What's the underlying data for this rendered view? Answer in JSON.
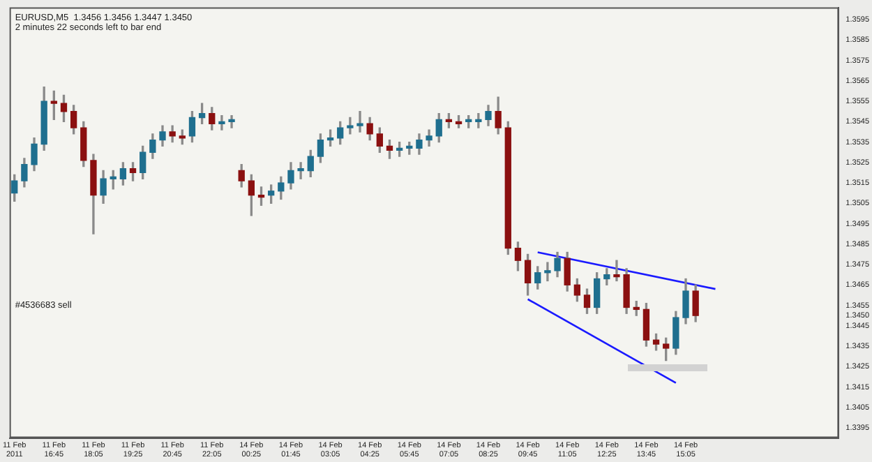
{
  "chart_data": {
    "type": "candlestick",
    "annotations": [
      "EURUSD,M5  1.3456 1.3456 1.3447 1.3450",
      "2 minutes 22 seconds left to bar end",
      "#4536683 sell"
    ],
    "categories": [
      "11 Feb 2011",
      null,
      null,
      null,
      "11 Feb 16:45",
      null,
      null,
      null,
      "11 Feb 18:05",
      null,
      null,
      null,
      "11 Feb 19:25",
      null,
      null,
      null,
      "11 Feb 20:45",
      null,
      null,
      null,
      "11 Feb 22:05",
      null,
      null,
      null,
      "14 Feb 00:25",
      null,
      null,
      null,
      "14 Feb 01:45",
      null,
      null,
      null,
      "14 Feb 03:05",
      null,
      null,
      null,
      "14 Feb 04:25",
      null,
      null,
      null,
      "14 Feb 05:45",
      null,
      null,
      null,
      "14 Feb 07:05",
      null,
      null,
      null,
      "14 Feb 08:25",
      null,
      null,
      null,
      "14 Feb 09:45",
      null,
      null,
      null,
      "14 Feb 11:05",
      null,
      null,
      null,
      "14 Feb 12:25",
      null,
      null,
      null,
      "14 Feb 13:45",
      null,
      null,
      null,
      "14 Feb 15:05",
      null,
      null,
      null,
      null,
      null,
      null,
      null,
      null,
      null,
      null,
      null,
      null,
      null,
      null,
      null
    ],
    "ohlc": [
      [
        1.351,
        1.3519,
        1.3506,
        1.3516
      ],
      [
        1.3516,
        1.3527,
        1.3513,
        1.3524
      ],
      [
        1.3524,
        1.3537,
        1.3521,
        1.3534
      ],
      [
        1.3534,
        1.3562,
        1.3531,
        1.3555
      ],
      [
        1.3555,
        1.356,
        1.3546,
        1.3554
      ],
      [
        1.3554,
        1.3558,
        1.3545,
        1.355
      ],
      [
        1.355,
        1.3553,
        1.3539,
        1.3542
      ],
      [
        1.3542,
        1.3545,
        1.3523,
        1.3526
      ],
      [
        1.3526,
        1.3529,
        1.349,
        1.3509
      ],
      [
        1.3509,
        1.3521,
        1.3505,
        1.3517
      ],
      [
        1.3517,
        1.3521,
        1.3512,
        1.3518
      ],
      [
        1.3517,
        1.3525,
        1.3514,
        1.3522
      ],
      [
        1.3522,
        1.3525,
        1.3516,
        1.352
      ],
      [
        1.352,
        1.3533,
        1.3517,
        1.353
      ],
      [
        1.353,
        1.3539,
        1.3527,
        1.3536
      ],
      [
        1.3536,
        1.3543,
        1.3533,
        1.354
      ],
      [
        1.354,
        1.3543,
        1.3535,
        1.3538
      ],
      [
        1.3538,
        1.3541,
        1.3534,
        1.3537
      ],
      [
        1.3538,
        1.355,
        1.3535,
        1.3547
      ],
      [
        1.3547,
        1.3554,
        1.3544,
        1.3549
      ],
      [
        1.3549,
        1.3552,
        1.3541,
        1.3544
      ],
      [
        1.3544,
        1.3548,
        1.3541,
        1.3545
      ],
      [
        1.3545,
        1.3548,
        1.3542,
        1.3546
      ],
      [
        1.3521,
        1.3524,
        1.3513,
        1.3516
      ],
      [
        1.3516,
        1.3519,
        1.3499,
        1.3509
      ],
      [
        1.3509,
        1.3513,
        1.3504,
        1.3508
      ],
      [
        1.3509,
        1.3514,
        1.3505,
        1.3511
      ],
      [
        1.3511,
        1.3518,
        1.3507,
        1.3515
      ],
      [
        1.3515,
        1.3525,
        1.3512,
        1.3521
      ],
      [
        1.3521,
        1.3525,
        1.3517,
        1.3522
      ],
      [
        1.3521,
        1.3531,
        1.3518,
        1.3528
      ],
      [
        1.3528,
        1.3539,
        1.3525,
        1.3536
      ],
      [
        1.3536,
        1.3541,
        1.3533,
        1.3537
      ],
      [
        1.3537,
        1.3545,
        1.3534,
        1.3542
      ],
      [
        1.3542,
        1.3547,
        1.3539,
        1.3543
      ],
      [
        1.3543,
        1.355,
        1.354,
        1.3544
      ],
      [
        1.3544,
        1.3547,
        1.3536,
        1.3539
      ],
      [
        1.3539,
        1.3542,
        1.353,
        1.3533
      ],
      [
        1.3533,
        1.3536,
        1.3527,
        1.3531
      ],
      [
        1.3531,
        1.3535,
        1.3528,
        1.3532
      ],
      [
        1.3532,
        1.3535,
        1.3529,
        1.3533
      ],
      [
        1.3532,
        1.3539,
        1.3529,
        1.3536
      ],
      [
        1.3536,
        1.3541,
        1.3533,
        1.3538
      ],
      [
        1.3538,
        1.3549,
        1.3535,
        1.3546
      ],
      [
        1.3546,
        1.3549,
        1.3542,
        1.3545
      ],
      [
        1.3545,
        1.3548,
        1.3542,
        1.3544
      ],
      [
        1.3545,
        1.3548,
        1.3542,
        1.3546
      ],
      [
        1.3545,
        1.3549,
        1.3542,
        1.3546
      ],
      [
        1.3546,
        1.3553,
        1.3543,
        1.355
      ],
      [
        1.355,
        1.3557,
        1.3539,
        1.3542
      ],
      [
        1.3542,
        1.3545,
        1.348,
        1.3483
      ],
      [
        1.3483,
        1.3486,
        1.3472,
        1.3477
      ],
      [
        1.3477,
        1.348,
        1.346,
        1.3466
      ],
      [
        1.3466,
        1.3474,
        1.3463,
        1.3471
      ],
      [
        1.3471,
        1.3476,
        1.3467,
        1.3472
      ],
      [
        1.3472,
        1.3481,
        1.3469,
        1.3478
      ],
      [
        1.3478,
        1.3481,
        1.3462,
        1.3465
      ],
      [
        1.3465,
        1.3468,
        1.3457,
        1.346
      ],
      [
        1.346,
        1.3463,
        1.3451,
        1.3454
      ],
      [
        1.3454,
        1.3471,
        1.3451,
        1.3468
      ],
      [
        1.3468,
        1.3473,
        1.3465,
        1.347
      ],
      [
        1.347,
        1.3477,
        1.3467,
        1.3469
      ],
      [
        1.347,
        1.3473,
        1.3451,
        1.3454
      ],
      [
        1.3454,
        1.3457,
        1.345,
        1.3453
      ],
      [
        1.3453,
        1.3456,
        1.3435,
        1.3438
      ],
      [
        1.3438,
        1.3441,
        1.3433,
        1.3436
      ],
      [
        1.3436,
        1.3439,
        1.3428,
        1.3434
      ],
      [
        1.3434,
        1.3452,
        1.3431,
        1.3449
      ],
      [
        1.3449,
        1.3468,
        1.3446,
        1.3462
      ],
      [
        1.3462,
        1.3465,
        1.3447,
        1.345
      ],
      null,
      null,
      null,
      null,
      null,
      null,
      null,
      null,
      null,
      null,
      null,
      null,
      null,
      null
    ],
    "series": [
      {
        "type": "line",
        "color": "#1a1aff",
        "values": [
          null,
          null,
          null,
          null,
          null,
          null,
          null,
          null,
          null,
          null,
          null,
          null,
          null,
          null,
          null,
          null,
          null,
          null,
          null,
          null,
          null,
          null,
          null,
          null,
          null,
          null,
          null,
          null,
          null,
          null,
          null,
          null,
          null,
          null,
          null,
          null,
          null,
          null,
          null,
          null,
          null,
          null,
          null,
          null,
          null,
          null,
          null,
          null,
          null,
          null,
          null,
          null,
          null,
          1.3481,
          null,
          null,
          null,
          null,
          null,
          null,
          null,
          null,
          null,
          null,
          null,
          null,
          null,
          null,
          null,
          null,
          null,
          1.3463,
          null,
          null,
          null,
          null,
          null,
          null,
          null,
          null,
          null,
          null,
          null,
          null
        ]
      },
      {
        "type": "line",
        "color": "#1a1aff",
        "values": [
          null,
          null,
          null,
          null,
          null,
          null,
          null,
          null,
          null,
          null,
          null,
          null,
          null,
          null,
          null,
          null,
          null,
          null,
          null,
          null,
          null,
          null,
          null,
          null,
          null,
          null,
          null,
          null,
          null,
          null,
          null,
          null,
          null,
          null,
          null,
          null,
          null,
          null,
          null,
          null,
          null,
          null,
          null,
          null,
          null,
          null,
          null,
          null,
          null,
          null,
          null,
          null,
          1.3458,
          null,
          null,
          null,
          null,
          null,
          null,
          null,
          null,
          null,
          null,
          null,
          null,
          null,
          null,
          1.3417,
          null,
          null,
          null,
          null,
          null,
          null,
          null,
          null,
          null,
          null,
          null,
          null,
          null,
          null,
          null,
          null
        ]
      }
    ],
    "ylim": [
      1.339,
      1.3601
    ],
    "yticks": [
      1.3395,
      1.3405,
      1.3415,
      1.3425,
      1.3435,
      1.3445,
      {
        "value": 1.345,
        "label": "1.3450"
      },
      1.3455,
      1.3465,
      1.3475,
      1.3485,
      1.3495,
      1.3505,
      1.3515,
      1.3525,
      1.3535,
      1.3545,
      1.3555,
      1.3565,
      1.3575,
      1.3585,
      1.3595
    ],
    "marker": "none",
    "legend": false
  }
}
